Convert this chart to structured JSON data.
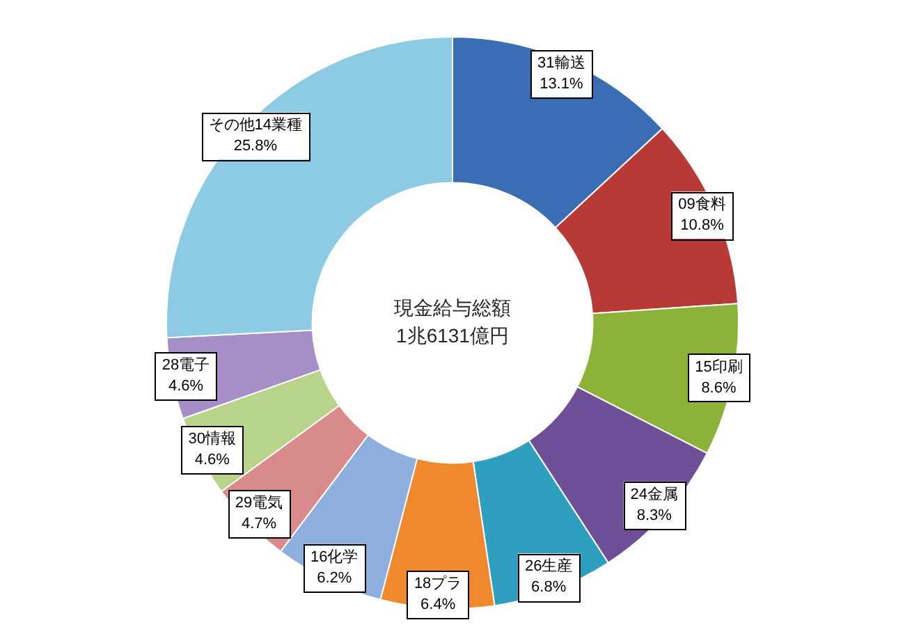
{
  "chart_data": {
    "type": "donut",
    "categories": [
      "31輸送",
      "09食料",
      "15印刷",
      "24金属",
      "26生産",
      "18プラ",
      "16化学",
      "29電気",
      "30情報",
      "28電子",
      "その他14業種"
    ],
    "values": [
      13.1,
      10.8,
      8.6,
      8.3,
      6.8,
      6.4,
      6.2,
      4.7,
      4.6,
      4.6,
      25.8
    ],
    "colors": [
      "#3a6db4",
      "#b83a36",
      "#8db23a",
      "#6e4f98",
      "#2f9fbf",
      "#f0882e",
      "#8eaede",
      "#d98a8a",
      "#b8d48a",
      "#a68fc6",
      "#8ccbe3"
    ],
    "value_labels": [
      "13.1%",
      "10.8%",
      "8.6%",
      "8.3%",
      "6.8%",
      "6.4%",
      "6.2%",
      "4.7%",
      "4.6%",
      "4.6%",
      "25.8%"
    ],
    "annotations": [
      "現金給与総額",
      "1兆6131億円"
    ]
  }
}
